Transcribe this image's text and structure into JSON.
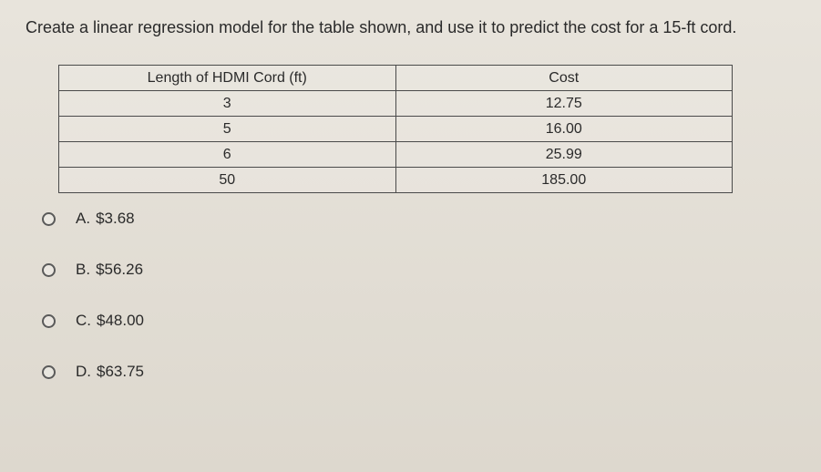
{
  "question": "Create a linear regression model for the table shown, and use it to predict the cost for a 15-ft cord.",
  "table": {
    "headers": {
      "length": "Length of HDMI Cord (ft)",
      "cost": "Cost"
    },
    "rows": [
      {
        "length": "3",
        "cost": "12.75"
      },
      {
        "length": "5",
        "cost": "16.00"
      },
      {
        "length": "6",
        "cost": "25.99"
      },
      {
        "length": "50",
        "cost": "185.00"
      }
    ]
  },
  "options": [
    {
      "letter": "A.",
      "value": "$3.68"
    },
    {
      "letter": "B.",
      "value": "$56.26"
    },
    {
      "letter": "C.",
      "value": "$48.00"
    },
    {
      "letter": "D.",
      "value": "$63.75"
    }
  ]
}
